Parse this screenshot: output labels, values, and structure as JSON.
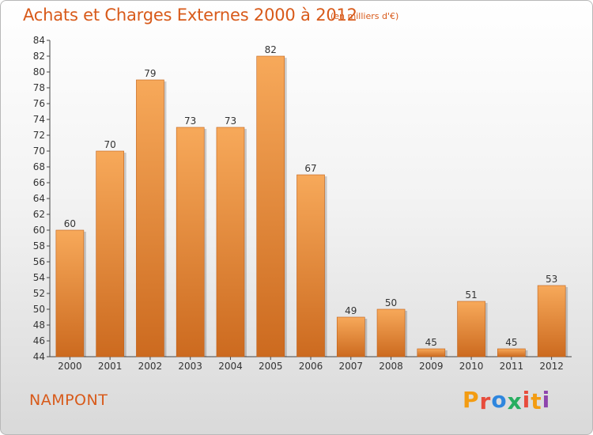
{
  "header": {
    "title": "Achats et Charges Externes 2000 à 2012",
    "unit": "(en milliers d'€)"
  },
  "footer": {
    "place": "NAMPONT",
    "logo_text": "Proxiti",
    "logo_colors": [
      "#f39c12",
      "#e74c3c",
      "#2e86de",
      "#27ae60",
      "#e74c3c",
      "#f39c12",
      "#8e44ad"
    ]
  },
  "colors": {
    "accent": "#d85a1a",
    "bar_light": "#f7a95a",
    "bar_dark": "#cc6a1f"
  },
  "chart_data": {
    "type": "bar",
    "title": "Achats et Charges Externes 2000 à 2012",
    "xlabel": "",
    "ylabel": "",
    "categories": [
      "2000",
      "2001",
      "2002",
      "2003",
      "2004",
      "2005",
      "2006",
      "2007",
      "2008",
      "2009",
      "2010",
      "2011",
      "2012"
    ],
    "values": [
      60,
      70,
      79,
      73,
      73,
      82,
      67,
      49,
      50,
      45,
      51,
      45,
      53
    ],
    "ylim": [
      44,
      84
    ],
    "yticks": [
      44,
      46,
      48,
      50,
      52,
      54,
      56,
      58,
      60,
      62,
      64,
      66,
      68,
      70,
      72,
      74,
      76,
      78,
      80,
      82,
      84
    ],
    "grid": false,
    "legend": "none"
  }
}
